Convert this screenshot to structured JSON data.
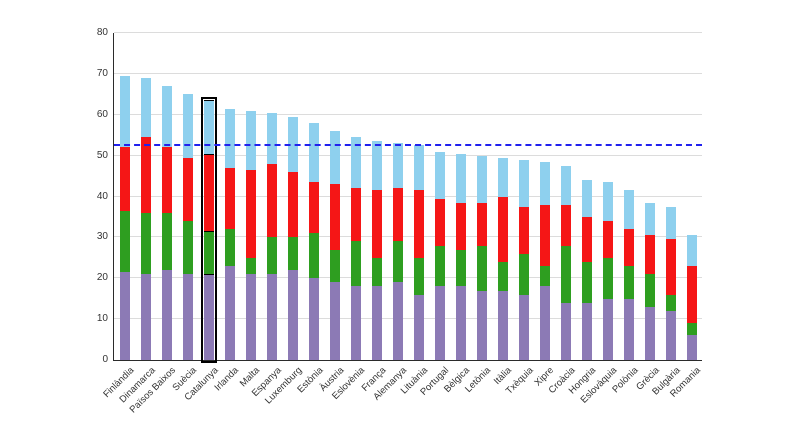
{
  "figure": {
    "background": "#ffffff",
    "title": ""
  },
  "chart_data": {
    "type": "bar",
    "stacked": true,
    "title": "",
    "xlabel": "",
    "ylabel": "",
    "ylim": [
      0,
      80
    ],
    "yticks": [
      0,
      10,
      20,
      30,
      40,
      50,
      60,
      70,
      80
    ],
    "grid": true,
    "legend": false,
    "highlighted_category": "Catalunya",
    "reference_line": {
      "value": 52.3,
      "color": "#2121ee",
      "style": "dashed"
    },
    "categories": [
      "Finlàndia",
      "Dinamarca",
      "Països Baixos",
      "Suècia",
      "Catalunya",
      "Irlanda",
      "Malta",
      "Espanya",
      "Luxemburg",
      "Estònia",
      "Àustria",
      "Eslovènia",
      "França",
      "Alemanya",
      "Lituània",
      "Portugal",
      "Bèlgica",
      "Letònia",
      "Itàlia",
      "Txèquia",
      "Xipre",
      "Croàcia",
      "Hongria",
      "Eslovàquia",
      "Polònia",
      "Grècia",
      "Bulgària",
      "Romania"
    ],
    "series": [
      {
        "name": "segment-bottom-purple",
        "color": "#8c7ab5",
        "values": [
          21.5,
          21,
          22,
          21,
          21,
          23,
          21,
          21,
          22,
          20,
          19,
          18,
          18,
          19,
          16,
          18,
          18,
          17,
          17,
          16,
          18,
          14,
          14,
          15,
          15,
          13,
          12,
          6
        ]
      },
      {
        "name": "segment-green",
        "color": "#2e9e20",
        "values": [
          15,
          15,
          14,
          13,
          10.5,
          9,
          4,
          9,
          8,
          11,
          8,
          11,
          7,
          10,
          9,
          10,
          9,
          11,
          7,
          10,
          5,
          14,
          10,
          10,
          8,
          8,
          4,
          3
        ]
      },
      {
        "name": "segment-red",
        "color": "#f51616",
        "values": [
          15.5,
          18.5,
          16,
          15.5,
          19,
          15,
          21.5,
          18,
          16,
          12.5,
          16,
          13,
          16.5,
          13,
          16.5,
          11.5,
          11.5,
          10.5,
          16,
          11.5,
          15,
          10,
          11,
          9,
          9,
          9.5,
          13.5,
          14
        ]
      },
      {
        "name": "segment-top-skyblue",
        "color": "#8ed0ee",
        "values": [
          17.5,
          14.5,
          15,
          15.5,
          13,
          14.5,
          14.5,
          12.5,
          13.5,
          14.5,
          13,
          12.5,
          12,
          11,
          11,
          11.5,
          12,
          11.5,
          9.5,
          11.5,
          10.5,
          9.5,
          9,
          9.5,
          9.5,
          8,
          8,
          7.5
        ]
      }
    ]
  }
}
